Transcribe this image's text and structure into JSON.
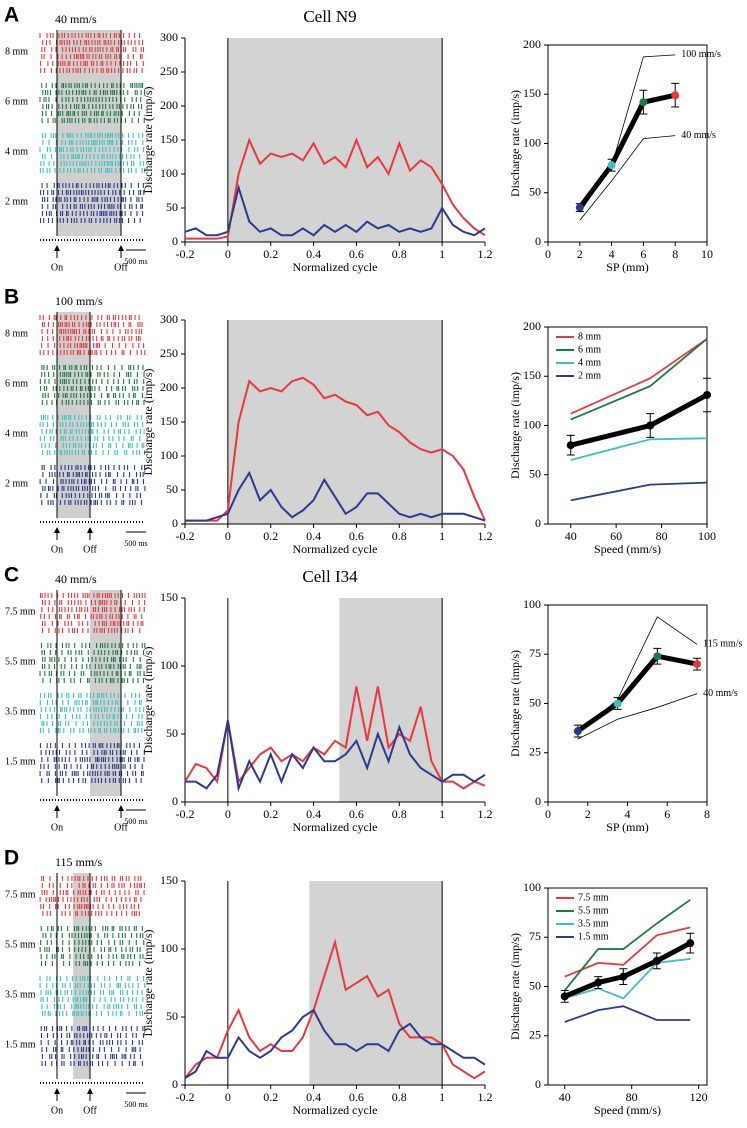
{
  "panels": [
    {
      "letter": "A",
      "title": "Cell N9",
      "speed": "40 mm/s",
      "rows": [
        "8 mm",
        "6 mm",
        "4 mm",
        "2 mm"
      ],
      "on": "On",
      "off": "Off",
      "scale": "500 ms"
    },
    {
      "letter": "B",
      "speed": "100 mm/s",
      "rows": [
        "8 mm",
        "6 mm",
        "4 mm",
        "2 mm"
      ],
      "on": "On",
      "off": "Off",
      "scale": "500 ms"
    },
    {
      "letter": "C",
      "title": "Cell I34",
      "speed": "40 mm/s",
      "rows": [
        "7.5 mm",
        "5.5 mm",
        "3.5 mm",
        "1.5 mm"
      ],
      "on": "On",
      "off": "Off",
      "scale": "500 ms"
    },
    {
      "letter": "D",
      "speed": "115 mm/s",
      "rows": [
        "7.5 mm",
        "5.5 mm",
        "3.5 mm",
        "1.5 mm"
      ],
      "on": "On",
      "off": "Off",
      "scale": "500 ms"
    }
  ],
  "chart_data": [
    {
      "type": "line",
      "xlabel": "Normalized cycle",
      "ylabel": "Discharge rate (imp/s)",
      "x": [
        -0.2,
        -0.15,
        -0.1,
        -0.05,
        0,
        0.05,
        0.1,
        0.15,
        0.2,
        0.25,
        0.3,
        0.35,
        0.4,
        0.45,
        0.5,
        0.55,
        0.6,
        0.65,
        0.7,
        0.75,
        0.8,
        0.85,
        0.9,
        0.95,
        1,
        1.05,
        1.1,
        1.15,
        1.2
      ],
      "xlim": [
        -0.2,
        1.2
      ],
      "xticks": [
        -0.2,
        0,
        0.2,
        0.4,
        0.6,
        0.8,
        1,
        1.2
      ],
      "ylim": [
        0,
        300
      ],
      "yticks": [
        0,
        50,
        100,
        150,
        200,
        250,
        300
      ],
      "shaded_x": [
        0,
        1
      ],
      "series": [
        {
          "color": "#e8383d",
          "values": [
            5,
            5,
            5,
            5,
            8,
            100,
            150,
            115,
            130,
            125,
            130,
            120,
            145,
            115,
            125,
            110,
            150,
            110,
            125,
            100,
            145,
            105,
            120,
            110,
            85,
            55,
            35,
            20,
            10
          ]
        },
        {
          "color": "#2b3a8f",
          "values": [
            15,
            20,
            10,
            10,
            15,
            80,
            30,
            15,
            20,
            10,
            10,
            20,
            10,
            25,
            15,
            25,
            15,
            30,
            20,
            25,
            15,
            20,
            15,
            20,
            50,
            25,
            15,
            10,
            20
          ]
        }
      ]
    },
    {
      "type": "errorbar",
      "xlabel": "SP (mm)",
      "ylabel": "Discharge rate (imp/s)",
      "x": [
        2,
        4,
        6,
        8
      ],
      "xlim": [
        0,
        10
      ],
      "xticks": [
        0,
        2,
        4,
        6,
        8,
        10
      ],
      "ylim": [
        0,
        200
      ],
      "yticks": [
        0,
        50,
        100,
        150,
        200
      ],
      "labels_at_end": true,
      "series": [
        {
          "name": "100 mm/s",
          "color": "#000000",
          "values": [
            30,
            77,
            188,
            190
          ]
        },
        {
          "name": "40 mm/s",
          "color": "#000000",
          "values": [
            22,
            62,
            105,
            108
          ]
        }
      ],
      "mean": {
        "color": "#000000",
        "values": [
          35,
          78,
          142,
          149
        ],
        "errors": [
          4,
          6,
          12,
          12
        ],
        "point_colors": [
          "#2b3a8f",
          "#3cc0c0",
          "#1e7a45",
          "#e8383d"
        ]
      }
    },
    {
      "type": "line",
      "xlabel": "Normalized cycle",
      "ylabel": "Discharge rate (imp/s)",
      "x": [
        -0.2,
        -0.15,
        -0.1,
        -0.05,
        0,
        0.05,
        0.1,
        0.15,
        0.2,
        0.25,
        0.3,
        0.35,
        0.4,
        0.45,
        0.5,
        0.55,
        0.6,
        0.65,
        0.7,
        0.75,
        0.8,
        0.85,
        0.9,
        0.95,
        1,
        1.05,
        1.1,
        1.15,
        1.2
      ],
      "xlim": [
        -0.2,
        1.2
      ],
      "xticks": [
        -0.2,
        0,
        0.2,
        0.4,
        0.6,
        0.8,
        1,
        1.2
      ],
      "ylim": [
        0,
        300
      ],
      "yticks": [
        0,
        50,
        100,
        150,
        200,
        250,
        300
      ],
      "shaded_x": [
        0,
        1
      ],
      "series": [
        {
          "color": "#e8383d",
          "values": [
            5,
            5,
            5,
            5,
            20,
            150,
            210,
            195,
            200,
            195,
            210,
            215,
            205,
            185,
            190,
            180,
            175,
            160,
            165,
            145,
            135,
            120,
            110,
            105,
            110,
            100,
            80,
            40,
            5
          ]
        },
        {
          "color": "#2b3a8f",
          "values": [
            5,
            5,
            5,
            10,
            15,
            50,
            75,
            35,
            50,
            25,
            10,
            20,
            35,
            65,
            40,
            15,
            25,
            45,
            45,
            30,
            15,
            10,
            15,
            10,
            15,
            15,
            15,
            10,
            5
          ]
        }
      ]
    },
    {
      "type": "errorbar",
      "xlabel": "Speed (mm/s)",
      "ylabel": "Discharge rate (imp/s)",
      "x": [
        40,
        75,
        100
      ],
      "xlim": [
        30,
        100
      ],
      "xticks": [
        40,
        60,
        80,
        100
      ],
      "ylim": [
        0,
        200
      ],
      "yticks": [
        0,
        50,
        100,
        150,
        200
      ],
      "legend": "upper left",
      "series": [
        {
          "name": "8 mm",
          "color": "#e8383d",
          "values": [
            112,
            148,
            188
          ]
        },
        {
          "name": "6 mm",
          "color": "#1e7a45",
          "values": [
            106,
            140,
            188
          ]
        },
        {
          "name": "4 mm",
          "color": "#3cc0c0",
          "values": [
            65,
            86,
            87
          ]
        },
        {
          "name": "2 mm",
          "color": "#2b3a8f",
          "values": [
            24,
            40,
            42
          ]
        }
      ],
      "mean": {
        "color": "#000000",
        "values": [
          80,
          100,
          131
        ],
        "errors": [
          10,
          12,
          17
        ]
      }
    },
    {
      "type": "line",
      "xlabel": "Normalized cycle",
      "ylabel": "Discharge rate (imp/s)",
      "x": [
        -0.2,
        -0.15,
        -0.1,
        -0.05,
        0,
        0.05,
        0.1,
        0.15,
        0.2,
        0.25,
        0.3,
        0.35,
        0.4,
        0.45,
        0.5,
        0.55,
        0.6,
        0.65,
        0.7,
        0.75,
        0.8,
        0.85,
        0.9,
        0.95,
        1,
        1.05,
        1.1,
        1.15,
        1.2
      ],
      "xlim": [
        -0.2,
        1.2
      ],
      "xticks": [
        -0.2,
        0,
        0.2,
        0.4,
        0.6,
        0.8,
        1,
        1.2
      ],
      "ylim": [
        0,
        150
      ],
      "yticks": [
        0,
        50,
        100,
        150
      ],
      "shaded_x": [
        0.52,
        1
      ],
      "vlines": [
        0,
        1
      ],
      "series": [
        {
          "color": "#e8383d",
          "values": [
            15,
            28,
            25,
            15,
            60,
            15,
            25,
            35,
            40,
            30,
            35,
            30,
            40,
            35,
            45,
            40,
            85,
            45,
            85,
            40,
            50,
            45,
            70,
            30,
            15,
            15,
            10,
            15,
            12
          ]
        },
        {
          "color": "#2b3a8f",
          "values": [
            15,
            15,
            10,
            20,
            60,
            10,
            30,
            15,
            35,
            15,
            35,
            25,
            40,
            30,
            30,
            35,
            45,
            25,
            50,
            30,
            55,
            35,
            25,
            20,
            15,
            20,
            20,
            15,
            20
          ]
        }
      ]
    },
    {
      "type": "errorbar",
      "xlabel": "SP (mm)",
      "ylabel": "Discharge rate (imp/s)",
      "x": [
        1.5,
        3.5,
        5.5,
        7.5
      ],
      "xlim": [
        0,
        8
      ],
      "xticks": [
        0,
        2,
        4,
        6,
        8
      ],
      "ylim": [
        0,
        100
      ],
      "yticks": [
        0,
        25,
        50,
        75,
        100
      ],
      "labels_at_end": true,
      "series": [
        {
          "name": "115 mm/s",
          "color": "#000000",
          "values": [
            35,
            52,
            94,
            80
          ]
        },
        {
          "name": "40 mm/s",
          "color": "#000000",
          "values": [
            32,
            42,
            48,
            55
          ]
        }
      ],
      "mean": {
        "color": "#000000",
        "values": [
          36,
          50,
          74,
          70
        ],
        "errors": [
          3,
          3,
          4,
          3
        ],
        "point_colors": [
          "#2b3a8f",
          "#3cc0c0",
          "#1e7a45",
          "#e8383d"
        ]
      }
    },
    {
      "type": "line",
      "xlabel": "Normalized cycle",
      "ylabel": "Discharge rate (imp/s)",
      "x": [
        -0.2,
        -0.15,
        -0.1,
        -0.05,
        0,
        0.05,
        0.1,
        0.15,
        0.2,
        0.25,
        0.3,
        0.35,
        0.4,
        0.45,
        0.5,
        0.55,
        0.6,
        0.65,
        0.7,
        0.75,
        0.8,
        0.85,
        0.9,
        0.95,
        1,
        1.05,
        1.1,
        1.15,
        1.2
      ],
      "xlim": [
        -0.2,
        1.2
      ],
      "xticks": [
        -0.2,
        0,
        0.2,
        0.4,
        0.6,
        0.8,
        1,
        1.2
      ],
      "ylim": [
        0,
        150
      ],
      "yticks": [
        0,
        50,
        100,
        150
      ],
      "shaded_x": [
        0.38,
        1
      ],
      "vlines": [
        0,
        1
      ],
      "series": [
        {
          "color": "#e8383d",
          "values": [
            5,
            15,
            20,
            20,
            40,
            55,
            35,
            25,
            30,
            25,
            25,
            35,
            55,
            80,
            105,
            70,
            75,
            80,
            65,
            70,
            45,
            35,
            35,
            35,
            30,
            15,
            10,
            5,
            10
          ]
        },
        {
          "color": "#2b3a8f",
          "values": [
            5,
            10,
            25,
            20,
            20,
            35,
            25,
            20,
            25,
            35,
            40,
            50,
            55,
            40,
            30,
            30,
            25,
            30,
            30,
            25,
            40,
            45,
            35,
            30,
            30,
            25,
            20,
            20,
            15
          ]
        }
      ]
    },
    {
      "type": "errorbar",
      "xlabel": "Speed (mm/s)",
      "ylabel": "Discharge rate (imp/s)",
      "x": [
        40,
        60,
        75,
        95,
        115
      ],
      "xlim": [
        30,
        125
      ],
      "xticks": [
        40,
        80,
        120
      ],
      "ylim": [
        0,
        100
      ],
      "yticks": [
        0,
        25,
        50,
        75,
        100
      ],
      "legend": "upper left",
      "series": [
        {
          "name": "7.5 mm",
          "color": "#e8383d",
          "values": [
            55,
            62,
            61,
            76,
            80
          ]
        },
        {
          "name": "5.5 mm",
          "color": "#1e7a45",
          "values": [
            48,
            69,
            69,
            82,
            94
          ]
        },
        {
          "name": "3.5 mm",
          "color": "#3cc0c0",
          "values": [
            44,
            49,
            44,
            62,
            64
          ]
        },
        {
          "name": "1.5 mm",
          "color": "#2b3a8f",
          "values": [
            32,
            38,
            40,
            33,
            33
          ]
        }
      ],
      "mean": {
        "color": "#000000",
        "values": [
          45,
          52,
          55,
          63,
          72
        ],
        "errors": [
          3,
          3,
          4,
          4,
          5
        ]
      }
    }
  ]
}
